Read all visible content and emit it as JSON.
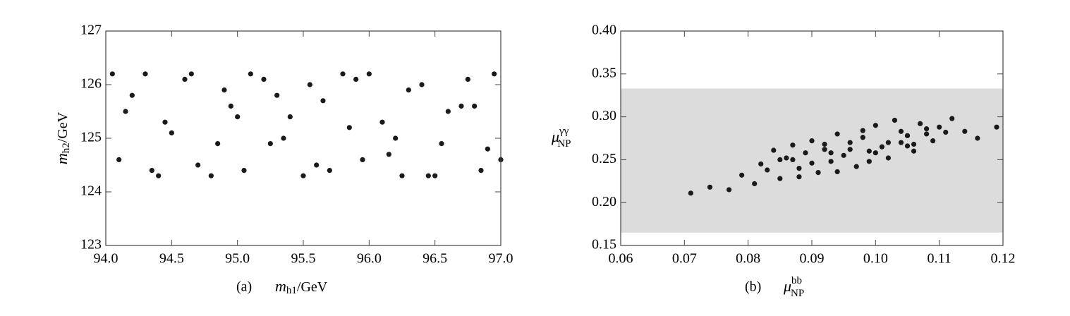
{
  "chart_data": [
    {
      "type": "scatter",
      "panel_label": "(a)",
      "xlabel": {
        "symbol": "m",
        "sub": "h1",
        "unit": "/GeV"
      },
      "ylabel": {
        "symbol": "m",
        "sub": "h2",
        "unit": "/GeV"
      },
      "xlim": [
        94,
        97
      ],
      "ylim": [
        123,
        127
      ],
      "xticks": [
        {
          "value": 94,
          "label": "94.0"
        },
        {
          "value": 94.5,
          "label": "94.5"
        },
        {
          "value": 95,
          "label": "95.0"
        },
        {
          "value": 95.5,
          "label": "95.5"
        },
        {
          "value": 96,
          "label": "96.0"
        },
        {
          "value": 96.5,
          "label": "96.5"
        },
        {
          "value": 97,
          "label": "97.0"
        }
      ],
      "yticks": [
        123,
        124,
        125,
        126,
        127
      ],
      "series": [
        {
          "color": "#1a1a1a",
          "x": [
            94.05,
            94.2,
            94.35,
            94.5,
            94.6,
            94.8,
            94.95,
            95.1,
            95.25,
            95.4,
            95.55,
            95.7,
            95.85,
            96.0,
            96.15,
            96.3,
            96.45,
            96.6,
            96.75,
            96.9,
            94.1,
            94.3,
            94.45,
            94.7,
            94.9,
            95.05,
            95.2,
            95.35,
            95.5,
            95.65,
            95.8,
            95.95,
            96.1,
            96.25,
            96.4,
            96.55,
            96.7,
            96.85,
            96.95,
            94.15,
            94.4,
            94.65,
            94.85,
            95.0,
            95.3,
            95.6,
            95.9,
            96.2,
            96.5,
            96.8,
            97.0
          ],
          "values": [
            126.2,
            125.8,
            124.4,
            125.1,
            126.1,
            124.3,
            125.6,
            126.2,
            124.9,
            125.4,
            126.0,
            124.4,
            125.2,
            126.2,
            124.7,
            125.9,
            124.3,
            125.5,
            126.1,
            124.8,
            124.6,
            126.2,
            125.3,
            124.5,
            125.9,
            124.4,
            126.1,
            125.0,
            124.3,
            125.7,
            126.2,
            124.6,
            125.3,
            124.3,
            126.0,
            124.9,
            125.6,
            124.4,
            126.2,
            125.5,
            124.3,
            126.2,
            124.9,
            125.4,
            125.8,
            124.5,
            126.1,
            125.0,
            124.3,
            125.6,
            124.6
          ]
        }
      ]
    },
    {
      "type": "scatter",
      "panel_label": "(b)",
      "xlabel": {
        "symbol": "μ",
        "sub": "NP",
        "sup": "bb"
      },
      "ylabel": {
        "symbol": "μ",
        "sub": "NP",
        "sup": "γγ"
      },
      "xlim": [
        0.06,
        0.12
      ],
      "ylim": [
        0.15,
        0.4
      ],
      "xticks": [
        0.06,
        0.07,
        0.08,
        0.09,
        {
          "value": 0.1,
          "label": "0.10"
        },
        0.11,
        0.12
      ],
      "yticks": [
        0.15,
        {
          "value": 0.2,
          "label": "0.20"
        },
        0.25,
        {
          "value": 0.3,
          "label": "0.30"
        },
        0.35,
        {
          "value": 0.4,
          "label": "0.40"
        }
      ],
      "band": {
        "ylim": [
          0.165,
          0.333
        ],
        "color": "#dcdcdc"
      },
      "series": [
        {
          "color": "#1a1a1a",
          "x": [
            0.071,
            0.074,
            0.077,
            0.079,
            0.081,
            0.082,
            0.083,
            0.084,
            0.085,
            0.086,
            0.087,
            0.088,
            0.089,
            0.09,
            0.091,
            0.092,
            0.093,
            0.094,
            0.095,
            0.096,
            0.097,
            0.098,
            0.099,
            0.1,
            0.101,
            0.102,
            0.103,
            0.104,
            0.105,
            0.106,
            0.107,
            0.108,
            0.109,
            0.11,
            0.111,
            0.112,
            0.114,
            0.116,
            0.119,
            0.085,
            0.088,
            0.09,
            0.092,
            0.094,
            0.096,
            0.098,
            0.1,
            0.102,
            0.104,
            0.106,
            0.108,
            0.087,
            0.093,
            0.099,
            0.105
          ],
          "values": [
            0.211,
            0.218,
            0.215,
            0.232,
            0.222,
            0.245,
            0.238,
            0.261,
            0.228,
            0.252,
            0.267,
            0.24,
            0.258,
            0.272,
            0.235,
            0.262,
            0.248,
            0.28,
            0.255,
            0.27,
            0.242,
            0.284,
            0.26,
            0.29,
            0.265,
            0.252,
            0.296,
            0.27,
            0.278,
            0.26,
            0.292,
            0.28,
            0.272,
            0.288,
            0.282,
            0.298,
            0.283,
            0.275,
            0.288,
            0.25,
            0.23,
            0.246,
            0.268,
            0.236,
            0.262,
            0.276,
            0.258,
            0.27,
            0.283,
            0.268,
            0.286,
            0.25,
            0.258,
            0.248,
            0.266
          ]
        }
      ]
    }
  ]
}
